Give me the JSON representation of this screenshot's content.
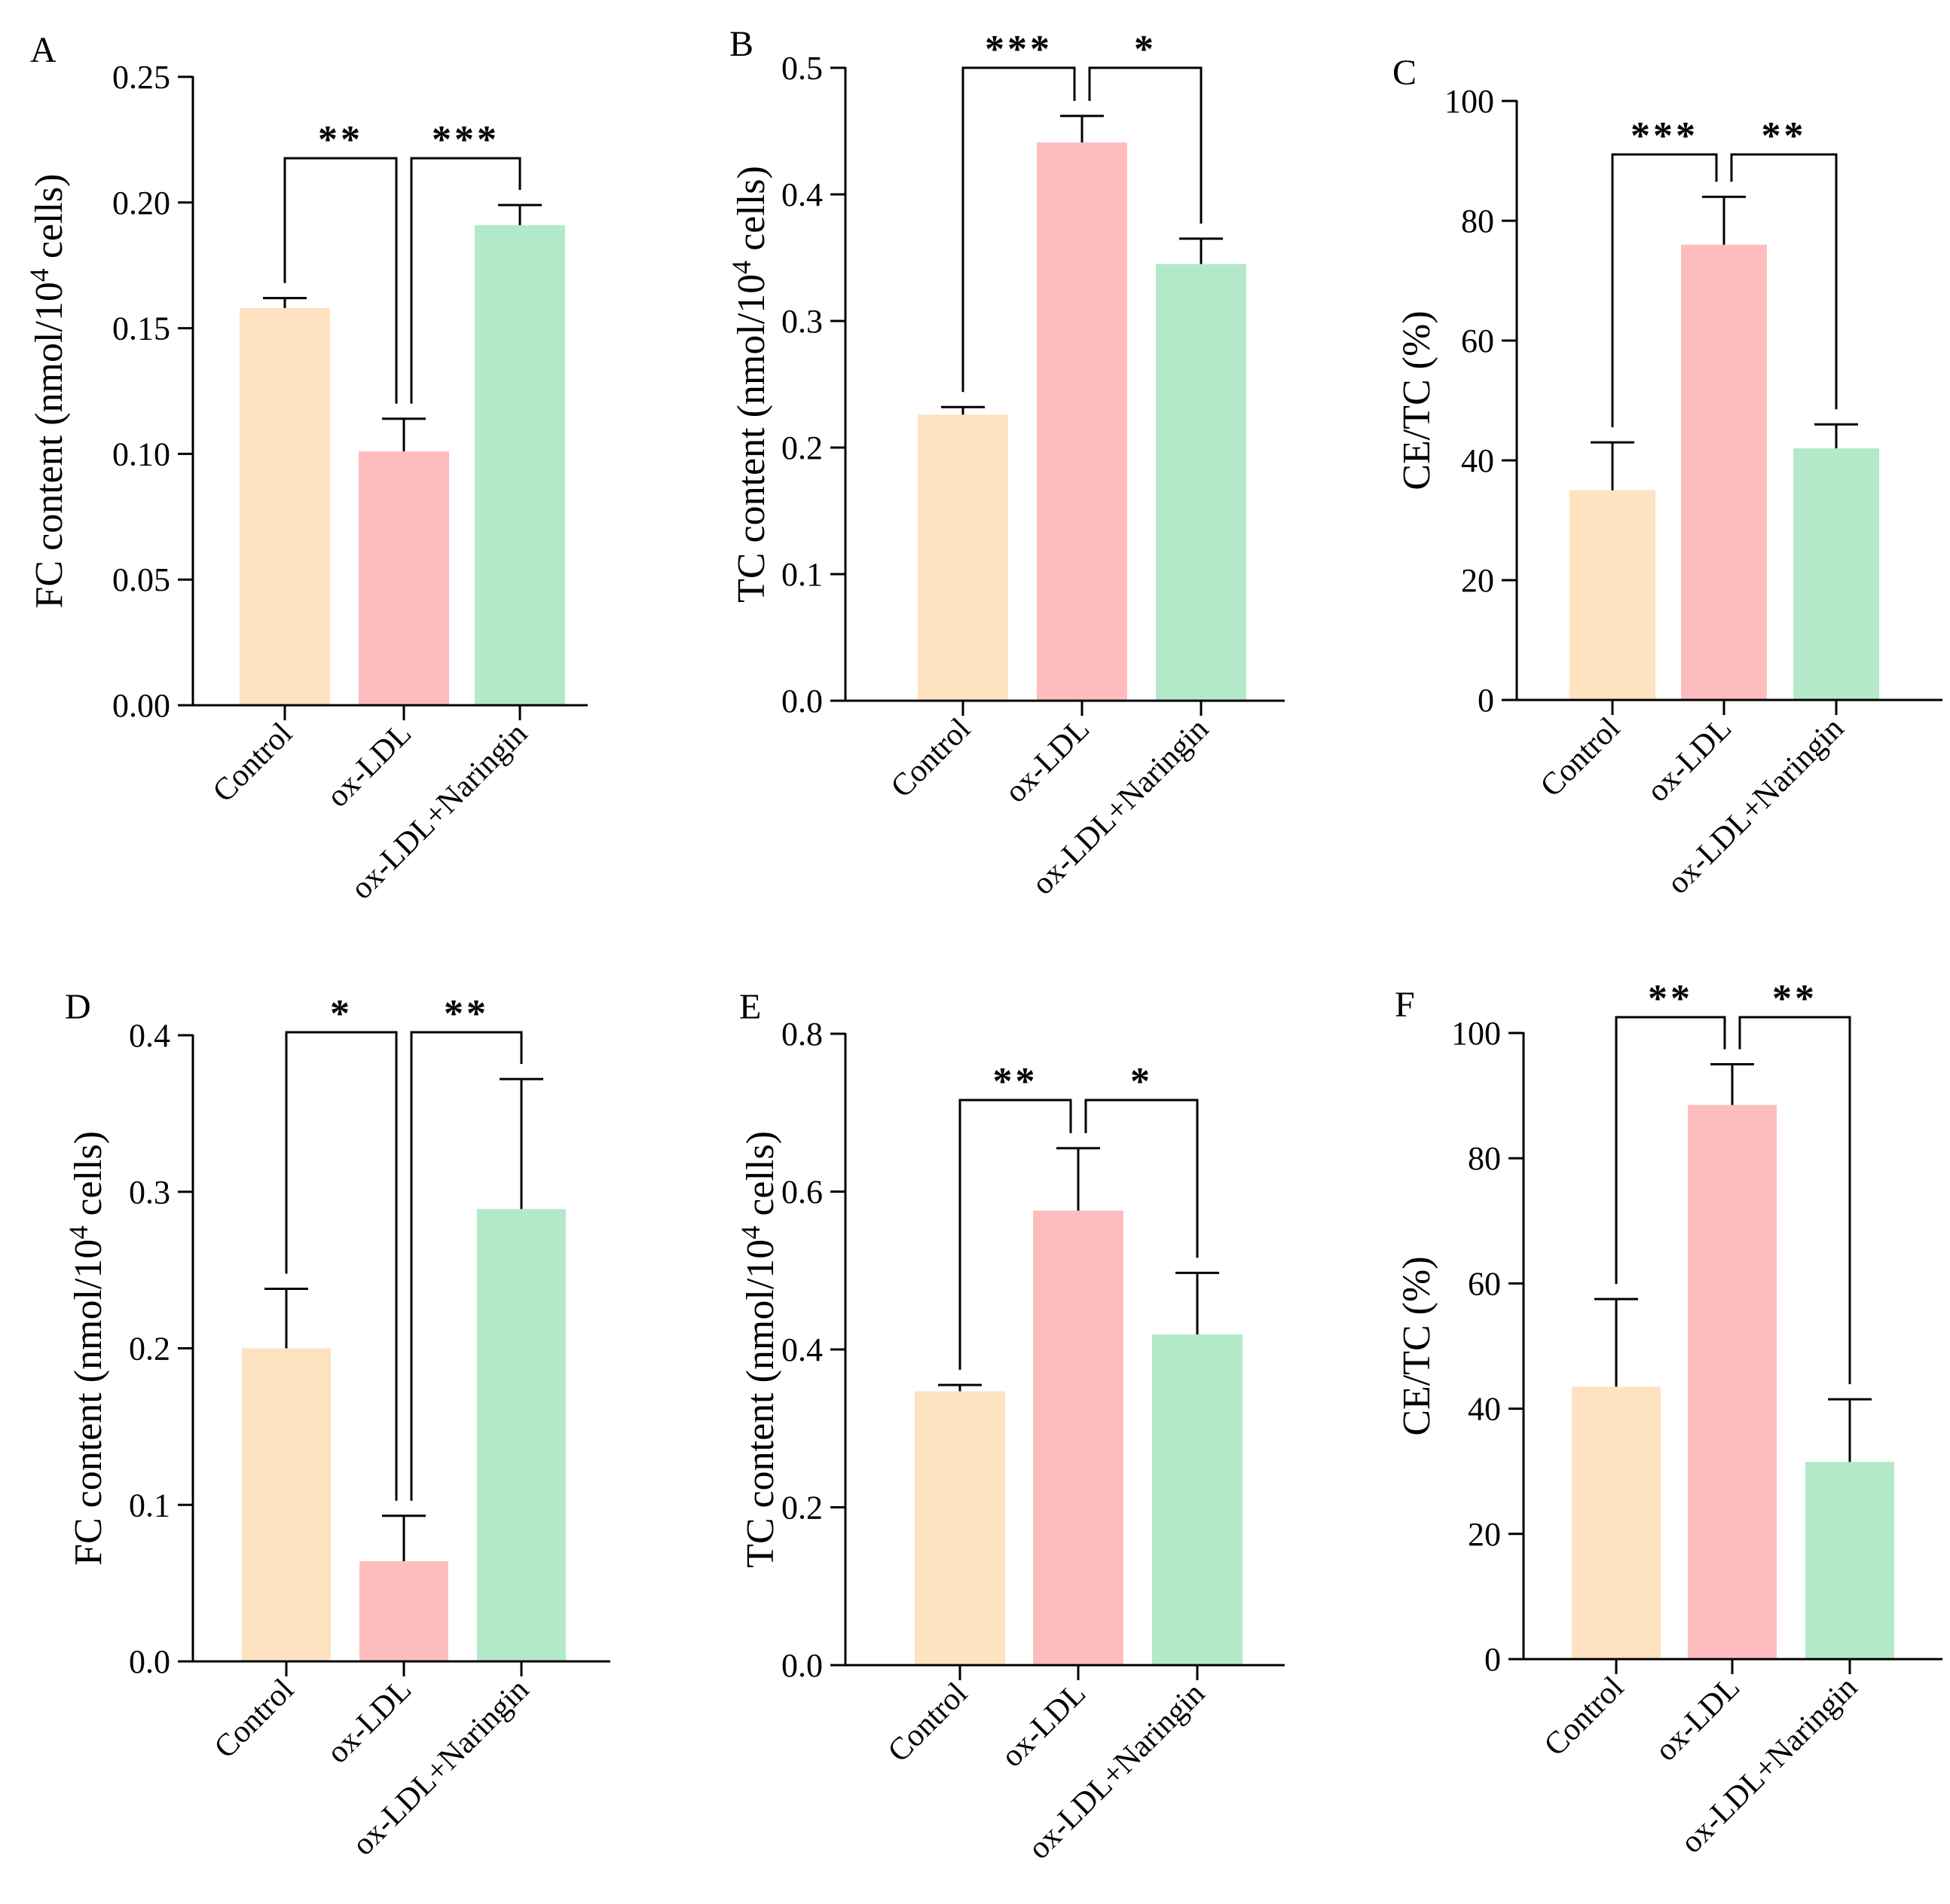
{
  "colors": {
    "control": "#fde3bf",
    "oxldl": "#fdbdbf",
    "naringin": "#b3e9c9",
    "ink": "#000000"
  },
  "chart_data": [
    {
      "panel": "A",
      "type": "bar",
      "ylabel_main": "FC content (nmol/10",
      "ylabel_sup": "4",
      "ylabel_tail": " cells)",
      "ylim": [
        0,
        0.25
      ],
      "yticks": [
        "0.00",
        "0.05",
        "0.10",
        "0.15",
        "0.20",
        "0.25"
      ],
      "categories": [
        "Control",
        "ox-LDL",
        "ox-LDL+Naringin"
      ],
      "values": [
        0.158,
        0.101,
        0.191
      ],
      "errors": [
        0.004,
        0.013,
        0.008
      ],
      "significance": [
        {
          "from": 0,
          "to": 1,
          "label": "**"
        },
        {
          "from": 1,
          "to": 2,
          "label": "***"
        }
      ]
    },
    {
      "panel": "B",
      "type": "bar",
      "ylabel_main": "TC content (nmol/10",
      "ylabel_sup": "4",
      "ylabel_tail": " cells)",
      "ylim": [
        0,
        0.5
      ],
      "yticks": [
        "0.0",
        "0.1",
        "0.2",
        "0.3",
        "0.4",
        "0.5"
      ],
      "categories": [
        "Control",
        "ox-LDL",
        "ox-LDL+Naringin"
      ],
      "values": [
        0.226,
        0.441,
        0.345
      ],
      "errors": [
        0.006,
        0.021,
        0.02
      ],
      "significance": [
        {
          "from": 0,
          "to": 1,
          "label": "***"
        },
        {
          "from": 1,
          "to": 2,
          "label": "*"
        }
      ]
    },
    {
      "panel": "C",
      "type": "bar",
      "ylabel_main": "CE/TC (%)",
      "ylabel_sup": "",
      "ylabel_tail": "",
      "ylim": [
        0,
        100
      ],
      "yticks": [
        "0",
        "20",
        "40",
        "60",
        "80",
        "100"
      ],
      "categories": [
        "Control",
        "ox-LDL",
        "ox-LDL+Naringin"
      ],
      "values": [
        35,
        76,
        42
      ],
      "errors": [
        8,
        8,
        4
      ],
      "significance": [
        {
          "from": 0,
          "to": 1,
          "label": "***"
        },
        {
          "from": 1,
          "to": 2,
          "label": "**"
        }
      ]
    },
    {
      "panel": "D",
      "type": "bar",
      "ylabel_main": "FC content (nmol/10",
      "ylabel_sup": "4",
      "ylabel_tail": " cells)",
      "ylim": [
        0,
        0.4
      ],
      "yticks": [
        "0.0",
        "0.1",
        "0.2",
        "0.3",
        "0.4"
      ],
      "categories": [
        "Control",
        "ox-LDL",
        "ox-LDL+Naringin"
      ],
      "values": [
        0.2,
        0.064,
        0.289
      ],
      "errors": [
        0.038,
        0.029,
        0.083
      ],
      "significance": [
        {
          "from": 0,
          "to": 1,
          "label": "*"
        },
        {
          "from": 1,
          "to": 2,
          "label": "**"
        }
      ]
    },
    {
      "panel": "E",
      "type": "bar",
      "ylabel_main": "TC content (nmol/10",
      "ylabel_sup": "4",
      "ylabel_tail": " cells)",
      "ylim": [
        0,
        0.8
      ],
      "yticks": [
        "0.0",
        "0.2",
        "0.4",
        "0.6",
        "0.8"
      ],
      "categories": [
        "Control",
        "ox-LDL",
        "ox-LDL+Naringin"
      ],
      "values": [
        0.347,
        0.576,
        0.419
      ],
      "errors": [
        0.008,
        0.079,
        0.078
      ],
      "significance": [
        {
          "from": 0,
          "to": 1,
          "label": "**"
        },
        {
          "from": 1,
          "to": 2,
          "label": "*"
        }
      ]
    },
    {
      "panel": "F",
      "type": "bar",
      "ylabel_main": "CE/TC (%)",
      "ylabel_sup": "",
      "ylabel_tail": "",
      "ylim": [
        0,
        100
      ],
      "yticks": [
        "0",
        "20",
        "40",
        "60",
        "80",
        "100"
      ],
      "categories": [
        "Control",
        "ox-LDL",
        "ox-LDL+Naringin"
      ],
      "values": [
        43.5,
        88.5,
        31.5
      ],
      "errors": [
        14,
        6.5,
        10
      ],
      "significance": [
        {
          "from": 0,
          "to": 1,
          "label": "**"
        },
        {
          "from": 1,
          "to": 2,
          "label": "**"
        }
      ]
    }
  ]
}
